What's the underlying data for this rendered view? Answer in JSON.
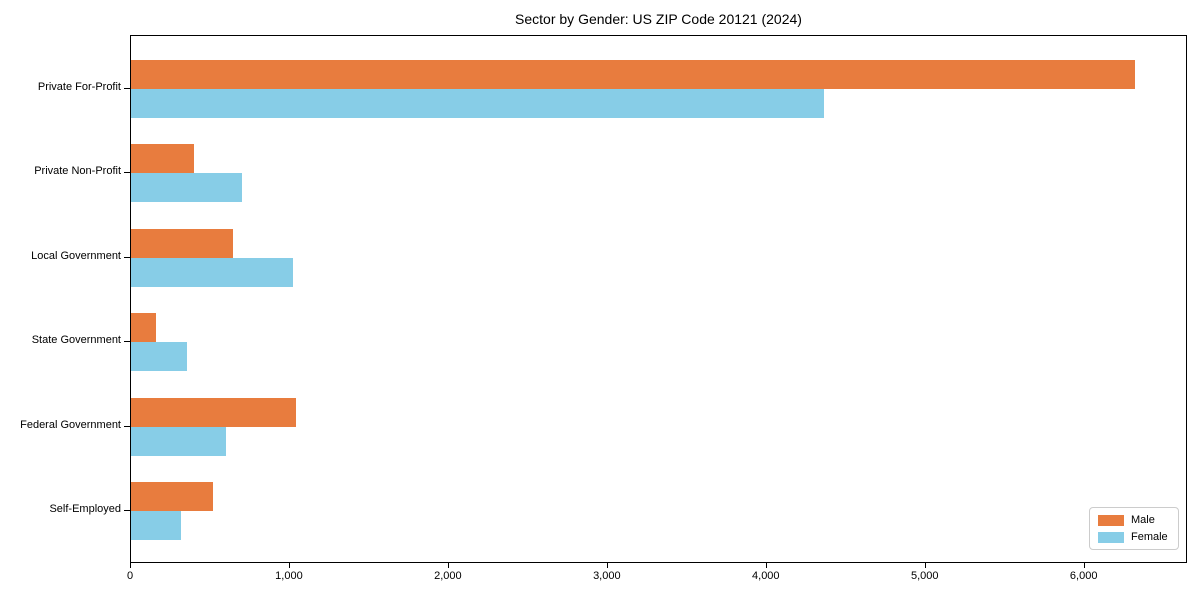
{
  "chart_data": {
    "type": "bar",
    "orientation": "horizontal",
    "title": "Sector by Gender: US ZIP Code 20121 (2024)",
    "categories": [
      "Private For-Profit",
      "Private Non-Profit",
      "Local Government",
      "State Government",
      "Federal Government",
      "Self-Employed"
    ],
    "series": [
      {
        "name": "Male",
        "color": "#e87c3e",
        "values": [
          6330,
          400,
          640,
          160,
          1040,
          520
        ]
      },
      {
        "name": "Female",
        "color": "#87cde7",
        "values": [
          4370,
          700,
          1020,
          355,
          600,
          315
        ]
      }
    ],
    "xlabel": "",
    "ylabel": "",
    "xlim": [
      0,
      6650
    ],
    "xticks": [
      0,
      1000,
      2000,
      3000,
      4000,
      5000,
      6000
    ],
    "xtick_labels": [
      "0",
      "1,000",
      "2,000",
      "3,000",
      "4,000",
      "5,000",
      "6,000"
    ],
    "grid": false,
    "legend_position": "lower right",
    "frame_color": "#000000",
    "background_color": "#ffffff"
  }
}
